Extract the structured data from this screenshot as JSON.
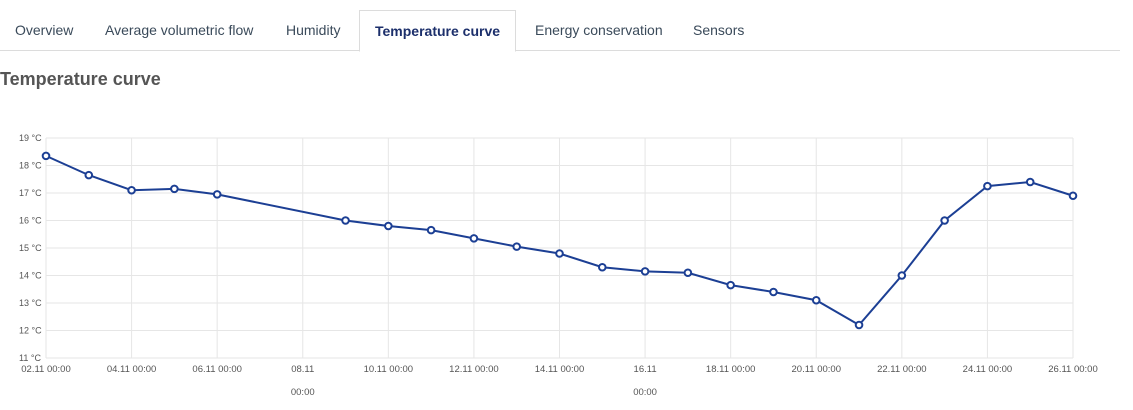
{
  "tabs": [
    {
      "label": "Overview"
    },
    {
      "label": "Average volumetric flow"
    },
    {
      "label": "Humidity"
    },
    {
      "label": "Temperature curve"
    },
    {
      "label": "Energy conservation"
    },
    {
      "label": "Sensors"
    }
  ],
  "active_tab": "Temperature curve",
  "page_title": "Temperature curve",
  "colors": {
    "series": "#1c3f94",
    "grid": "#e6e6e6",
    "active_tab_text": "#1c2f6b"
  },
  "chart_data": {
    "type": "line",
    "title": "",
    "xlabel": "",
    "ylabel": "",
    "ylim": [
      11,
      19
    ],
    "y_ticks": [
      {
        "value": 11,
        "label": "11 °C"
      },
      {
        "value": 12,
        "label": "12 °C"
      },
      {
        "value": 13,
        "label": "13 °C"
      },
      {
        "value": 14,
        "label": "14 °C"
      },
      {
        "value": 15,
        "label": "15 °C"
      },
      {
        "value": 16,
        "label": "16 °C"
      },
      {
        "value": 17,
        "label": "17 °C"
      },
      {
        "value": 18,
        "label": "18 °C"
      },
      {
        "value": 19,
        "label": "19 °C"
      }
    ],
    "x_ticks": [
      {
        "date": "2023-11-02",
        "label": "02.11 00:00"
      },
      {
        "date": "2023-11-04",
        "label": "04.11 00:00"
      },
      {
        "date": "2023-11-06",
        "label": "06.11 00:00"
      },
      {
        "date": "2023-11-08",
        "label": "08.11 00:00",
        "wrap": true
      },
      {
        "date": "2023-11-10",
        "label": "10.11 00:00"
      },
      {
        "date": "2023-11-12",
        "label": "12.11 00:00"
      },
      {
        "date": "2023-11-14",
        "label": "14.11 00:00"
      },
      {
        "date": "2023-11-16",
        "label": "16.11 00:00",
        "wrap": true
      },
      {
        "date": "2023-11-18",
        "label": "18.11 00:00"
      },
      {
        "date": "2023-11-20",
        "label": "20.11 00:00"
      },
      {
        "date": "2023-11-22",
        "label": "22.11 00:00"
      },
      {
        "date": "2023-11-24",
        "label": "24.11 00:00"
      },
      {
        "date": "2023-11-26",
        "label": "26.11 00:00"
      }
    ],
    "grid": true,
    "series": [
      {
        "points": [
          {
            "x": "2023-11-02",
            "y": 18.35
          },
          {
            "x": "2023-11-03",
            "y": 17.65
          },
          {
            "x": "2023-11-04",
            "y": 17.1
          },
          {
            "x": "2023-11-05",
            "y": 17.15
          },
          {
            "x": "2023-11-06",
            "y": 16.95
          },
          {
            "x": "2023-11-09",
            "y": 16.0
          },
          {
            "x": "2023-11-10",
            "y": 15.8
          },
          {
            "x": "2023-11-11",
            "y": 15.65
          },
          {
            "x": "2023-11-12",
            "y": 15.35
          },
          {
            "x": "2023-11-13",
            "y": 15.05
          },
          {
            "x": "2023-11-14",
            "y": 14.8
          },
          {
            "x": "2023-11-15",
            "y": 14.3
          },
          {
            "x": "2023-11-16",
            "y": 14.15
          },
          {
            "x": "2023-11-17",
            "y": 14.1
          },
          {
            "x": "2023-11-18",
            "y": 13.65
          },
          {
            "x": "2023-11-19",
            "y": 13.4
          },
          {
            "x": "2023-11-20",
            "y": 13.1
          },
          {
            "x": "2023-11-21",
            "y": 12.2
          },
          {
            "x": "2023-11-22",
            "y": 14.0
          },
          {
            "x": "2023-11-23",
            "y": 16.0
          },
          {
            "x": "2023-11-24",
            "y": 17.25
          },
          {
            "x": "2023-11-25",
            "y": 17.4
          },
          {
            "x": "2023-11-26",
            "y": 16.9
          }
        ]
      }
    ]
  }
}
